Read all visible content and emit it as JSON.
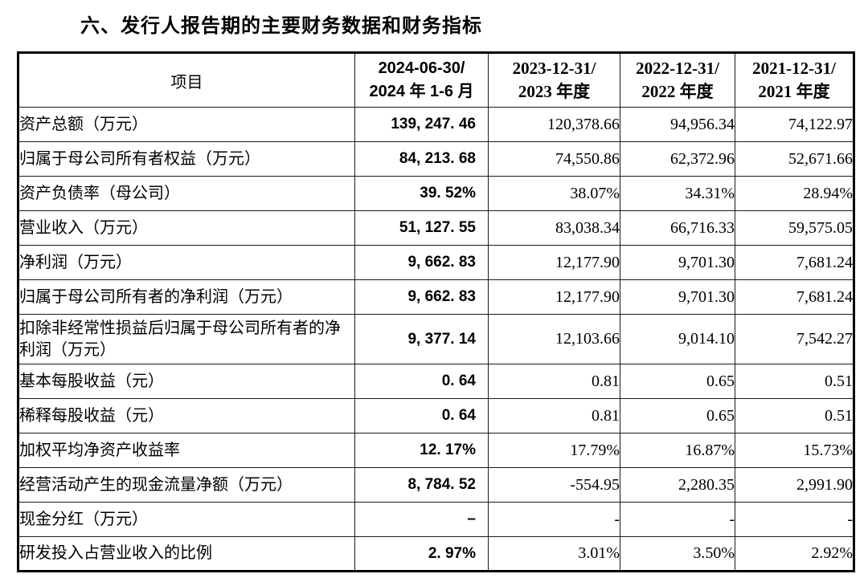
{
  "page_title": "六、发行人报告期的主要财务数据和财务指标",
  "table": {
    "header": {
      "item_label": "项目",
      "periods": [
        {
          "line1": "2024-06-30/",
          "line2": "2024 年 1-6 月"
        },
        {
          "line1": "2023-12-31/",
          "line2": "2023 年度"
        },
        {
          "line1": "2022-12-31/",
          "line2": "2022 年度"
        },
        {
          "line1": "2021-12-31/",
          "line2": "2021 年度"
        }
      ]
    },
    "rows": [
      {
        "label": "资产总额（万元）",
        "values": [
          "139, 247. 46",
          "120,378.66",
          "94,956.34",
          "74,122.97"
        ]
      },
      {
        "label": "归属于母公司所有者权益（万元）",
        "values": [
          "84, 213. 68",
          "74,550.86",
          "62,372.96",
          "52,671.66"
        ]
      },
      {
        "label": "资产负债率（母公司）",
        "values": [
          "39. 52%",
          "38.07%",
          "34.31%",
          "28.94%"
        ]
      },
      {
        "label": "营业收入（万元）",
        "values": [
          "51, 127. 55",
          "83,038.34",
          "66,716.33",
          "59,575.05"
        ]
      },
      {
        "label": "净利润（万元）",
        "values": [
          "9, 662. 83",
          "12,177.90",
          "9,701.30",
          "7,681.24"
        ]
      },
      {
        "label": "归属于母公司所有者的净利润（万元）",
        "values": [
          "9, 662. 83",
          "12,177.90",
          "9,701.30",
          "7,681.24"
        ]
      },
      {
        "label": "扣除非经常性损益后归属于母公司所有者的净利润（万元）",
        "values": [
          "9, 377. 14",
          "12,103.66",
          "9,014.10",
          "7,542.27"
        ]
      },
      {
        "label": "基本每股收益（元）",
        "values": [
          "0. 64",
          "0.81",
          "0.65",
          "0.51"
        ]
      },
      {
        "label": "稀释每股收益（元）",
        "values": [
          "0. 64",
          "0.81",
          "0.65",
          "0.51"
        ]
      },
      {
        "label": "加权平均净资产收益率",
        "values": [
          "12. 17%",
          "17.79%",
          "16.87%",
          "15.73%"
        ]
      },
      {
        "label": "经营活动产生的现金流量净额（万元）",
        "values": [
          "8, 784. 52",
          "-554.95",
          "2,280.35",
          "2,991.90"
        ]
      },
      {
        "label": "现金分红（万元）",
        "values": [
          "–",
          "-",
          "-",
          "-"
        ]
      },
      {
        "label": "研发投入占营业收入的比例",
        "values": [
          "2. 97%",
          "3.01%",
          "3.50%",
          "2.92%"
        ]
      }
    ]
  },
  "colors": {
    "text": "#000000",
    "background": "#ffffff",
    "border": "#000000"
  }
}
